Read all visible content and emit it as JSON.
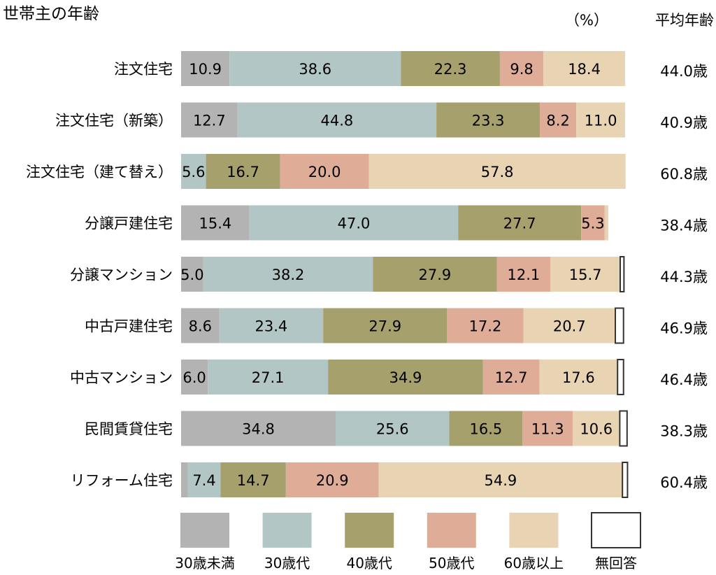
{
  "chart_data": {
    "type": "bar",
    "stacked": "horizontal-100%",
    "title": "世帯主の年齢",
    "unit_label": "（%）",
    "avg_header": "平均年齢",
    "categories": [
      "注文住宅",
      "注文住宅（新築）",
      "注文住宅（建て替え）",
      "分譲戸建住宅",
      "分譲マンション",
      "中古戸建住宅",
      "中古マンション",
      "民間賃貸住宅",
      "リフォーム住宅"
    ],
    "series": [
      {
        "name": "30歳未満",
        "color": "#b3b3b3",
        "values": [
          10.9,
          12.7,
          0.0,
          15.4,
          5.0,
          8.6,
          6.0,
          34.8,
          1.5
        ]
      },
      {
        "name": "30歳代",
        "color": "#b2c7c5",
        "values": [
          38.6,
          44.8,
          5.6,
          47.0,
          38.2,
          23.4,
          27.1,
          25.6,
          7.4
        ]
      },
      {
        "name": "40歳代",
        "color": "#a6a06c",
        "values": [
          22.3,
          23.3,
          16.7,
          27.7,
          27.9,
          27.9,
          34.9,
          16.5,
          14.7
        ]
      },
      {
        "name": "50歳代",
        "color": "#dfac97",
        "values": [
          9.8,
          8.2,
          20.0,
          5.3,
          12.1,
          17.2,
          12.7,
          11.3,
          20.9
        ]
      },
      {
        "name": "60歳以上",
        "color": "#e8d3b2",
        "values": [
          18.4,
          11.0,
          57.8,
          0.8,
          15.7,
          20.7,
          17.6,
          10.6,
          54.9
        ]
      },
      {
        "name": "無回答",
        "color": "#ffffff",
        "values": [
          0.0,
          0.0,
          0.0,
          0.0,
          1.0,
          2.0,
          1.5,
          1.8,
          1.3
        ]
      }
    ],
    "value_labels": [
      [
        "10.9",
        "38.6",
        "22.3",
        "9.8",
        "18.4",
        ""
      ],
      [
        "12.7",
        "44.8",
        "23.3",
        "8.2",
        "11.0",
        ""
      ],
      [
        "",
        "5.6",
        "16.7",
        "20.0",
        "57.8",
        ""
      ],
      [
        "15.4",
        "47.0",
        "27.7",
        "5.3",
        "",
        ""
      ],
      [
        "5.0",
        "38.2",
        "27.9",
        "12.1",
        "15.7",
        ""
      ],
      [
        "8.6",
        "23.4",
        "27.9",
        "17.2",
        "20.7",
        ""
      ],
      [
        "6.0",
        "27.1",
        "34.9",
        "12.7",
        "17.6",
        ""
      ],
      [
        "34.8",
        "25.6",
        "16.5",
        "11.3",
        "10.6",
        ""
      ],
      [
        "",
        "7.4",
        "14.7",
        "20.9",
        "54.9",
        ""
      ]
    ],
    "average_ages": [
      "44.0歳",
      "40.9歳",
      "60.8歳",
      "38.4歳",
      "44.3歳",
      "46.9歳",
      "46.4歳",
      "38.3歳",
      "60.4歳"
    ],
    "xlim": [
      0,
      100
    ],
    "grid": false,
    "legend_position": "bottom"
  }
}
